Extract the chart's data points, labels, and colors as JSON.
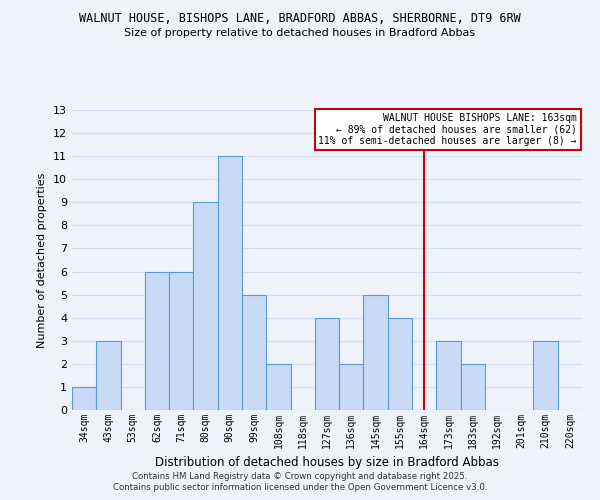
{
  "title_line1": "WALNUT HOUSE, BISHOPS LANE, BRADFORD ABBAS, SHERBORNE, DT9 6RW",
  "title_line2": "Size of property relative to detached houses in Bradford Abbas",
  "xlabel": "Distribution of detached houses by size in Bradford Abbas",
  "ylabel": "Number of detached properties",
  "bar_labels": [
    "34sqm",
    "43sqm",
    "53sqm",
    "62sqm",
    "71sqm",
    "80sqm",
    "90sqm",
    "99sqm",
    "108sqm",
    "118sqm",
    "127sqm",
    "136sqm",
    "145sqm",
    "155sqm",
    "164sqm",
    "173sqm",
    "183sqm",
    "192sqm",
    "201sqm",
    "210sqm",
    "220sqm"
  ],
  "bar_values": [
    1,
    3,
    0,
    6,
    6,
    9,
    11,
    5,
    2,
    0,
    4,
    2,
    5,
    4,
    0,
    3,
    2,
    0,
    0,
    3,
    0
  ],
  "bar_color": "#c8daf5",
  "bar_edge_color": "#5b9bd5",
  "vline_x": 14,
  "vline_color": "#cc0000",
  "ylim": [
    0,
    13
  ],
  "yticks": [
    0,
    1,
    2,
    3,
    4,
    5,
    6,
    7,
    8,
    9,
    10,
    11,
    12,
    13
  ],
  "legend_title": "WALNUT HOUSE BISHOPS LANE: 163sqm",
  "legend_line1": "← 89% of detached houses are smaller (62)",
  "legend_line2": "11% of semi-detached houses are larger (8) →",
  "legend_box_color": "#cc0000",
  "grid_color": "#d0dff5",
  "footnote1": "Contains HM Land Registry data © Crown copyright and database right 2025.",
  "footnote2": "Contains public sector information licensed under the Open Government Licence v3.0.",
  "bg_color": "#eef2fb"
}
